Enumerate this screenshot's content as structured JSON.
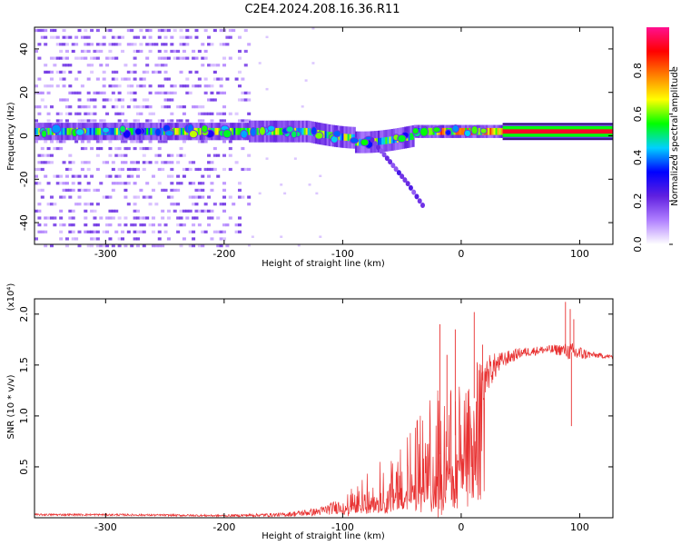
{
  "title": "C2E4.2024.208.16.36.R11",
  "chart_data": [
    {
      "type": "heatmap",
      "xlabel": "Height of straight line (km)",
      "ylabel": "Frequency (Hz)",
      "xlim": [
        -360,
        128
      ],
      "ylim": [
        -50,
        50
      ],
      "x_ticks": [
        -300,
        -200,
        -100,
        0,
        100
      ],
      "y_ticks": [
        -40,
        -20,
        0,
        20,
        40
      ],
      "colorbar": {
        "label": "Normalized spectral amplitude",
        "range": [
          0,
          1
        ],
        "ticks": [
          "0.0",
          "0.2",
          "0.4",
          "0.6",
          "0.8"
        ],
        "colors": [
          "#ffffff",
          "#b080ff",
          "#6020e0",
          "#0000ff",
          "#00d0ff",
          "#00ff00",
          "#ffff00",
          "#ff8000",
          "#ff0000",
          "#ff1090"
        ]
      },
      "features": {
        "noise_band_x": [
          -360,
          -180
        ],
        "carrier_frequency_hz": 2,
        "saturated_line_x": [
          35,
          128
        ],
        "side_branch": [
          [
            -75,
            -2
          ],
          [
            -60,
            -12
          ],
          [
            -45,
            -22
          ],
          [
            -30,
            -34
          ]
        ]
      }
    },
    {
      "type": "line",
      "xlabel": "Height of straight line (km)",
      "ylabel": "SNR (10 * v/v)",
      "y_multiplier": "(x10⁴)",
      "xlim": [
        -360,
        128
      ],
      "ylim": [
        0,
        2.15
      ],
      "x_ticks": [
        -300,
        -200,
        -100,
        0,
        100
      ],
      "y_ticks": [
        0.5,
        1.0,
        1.5,
        2.0
      ],
      "y_tick_labels": [
        "0.5",
        "1.0",
        "1.5",
        "2.0"
      ],
      "series": [
        {
          "name": "SNR",
          "color": "#e83030",
          "envelope": {
            "x": [
              -360,
              -300,
              -200,
              -150,
              -120,
              -100,
              -80,
              -60,
              -45,
              -30,
              -20,
              -10,
              0,
              10,
              20,
              35,
              50,
              70,
              85,
              95,
              110,
              128
            ],
            "y": [
              0.03,
              0.03,
              0.02,
              0.03,
              0.06,
              0.12,
              0.25,
              0.35,
              0.45,
              0.55,
              0.6,
              0.72,
              0.9,
              1.15,
              1.4,
              1.55,
              1.62,
              1.65,
              1.65,
              1.62,
              1.6,
              1.58
            ],
            "jitter": [
              0.01,
              0.01,
              0.01,
              0.02,
              0.04,
              0.08,
              0.2,
              0.3,
              0.4,
              0.55,
              0.7,
              0.55,
              0.45,
              0.35,
              0.2,
              0.08,
              0.05,
              0.04,
              0.06,
              0.1,
              0.03,
              0.02
            ]
          },
          "spikes": [
            [
              -18,
              1.9
            ],
            [
              -12,
              1.6
            ],
            [
              -5,
              1.85
            ],
            [
              11,
              2.02
            ],
            [
              18,
              1.7
            ],
            [
              88,
              2.12
            ],
            [
              92,
              2.05
            ],
            [
              95,
              1.95
            ],
            [
              93,
              0.9
            ]
          ]
        }
      ]
    }
  ]
}
